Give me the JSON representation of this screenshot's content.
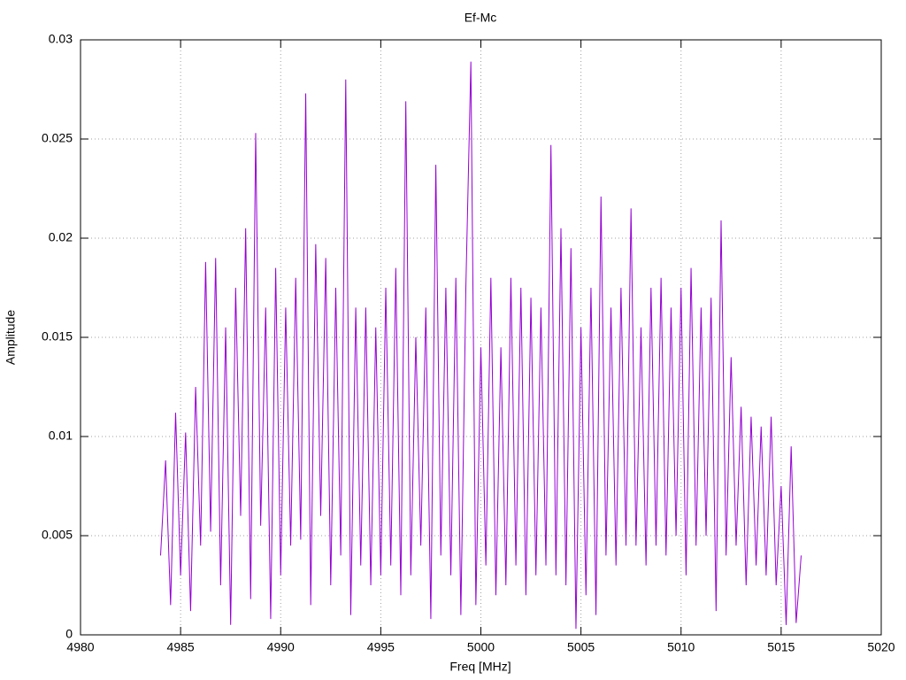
{
  "chart_data": {
    "type": "line",
    "title": "Ef-Mc",
    "xlabel": "Freq [MHz]",
    "ylabel": "Amplitude",
    "color": "#9400d3",
    "grid": true,
    "xlim": [
      4980,
      5020
    ],
    "xticks": [
      4980,
      4985,
      4990,
      4995,
      5000,
      5005,
      5010,
      5015,
      5020
    ],
    "ylim": [
      0,
      0.03
    ],
    "yticks": [
      0,
      0.005,
      0.01,
      0.015,
      0.02,
      0.025,
      0.03
    ],
    "x": [
      4984,
      4984.25,
      4984.5,
      4984.75,
      4985,
      4985.25,
      4985.5,
      4985.75,
      4986,
      4986.25,
      4986.5,
      4986.75,
      4987,
      4987.25,
      4987.5,
      4987.75,
      4988,
      4988.25,
      4988.5,
      4988.75,
      4989,
      4989.25,
      4989.5,
      4989.75,
      4990,
      4990.25,
      4990.5,
      4990.75,
      4991,
      4991.25,
      4991.5,
      4991.75,
      4992,
      4992.25,
      4992.5,
      4992.75,
      4993,
      4993.25,
      4993.5,
      4993.75,
      4994,
      4994.25,
      4994.5,
      4994.75,
      4995,
      4995.25,
      4995.5,
      4995.75,
      4996,
      4996.25,
      4996.5,
      4996.75,
      4997,
      4997.25,
      4997.5,
      4997.75,
      4998,
      4998.25,
      4998.5,
      4998.75,
      4999,
      4999.25,
      4999.5,
      4999.75,
      5000,
      5000.25,
      5000.5,
      5000.75,
      5001,
      5001.25,
      5001.5,
      5001.75,
      5002,
      5002.25,
      5002.5,
      5002.75,
      5003,
      5003.25,
      5003.5,
      5003.75,
      5004,
      5004.25,
      5004.5,
      5004.75,
      5005,
      5005.25,
      5005.5,
      5005.75,
      5006,
      5006.25,
      5006.5,
      5006.75,
      5007,
      5007.25,
      5007.5,
      5007.75,
      5008,
      5008.25,
      5008.5,
      5008.75,
      5009,
      5009.25,
      5009.5,
      5009.75,
      5010,
      5010.25,
      5010.5,
      5010.75,
      5011,
      5011.25,
      5011.5,
      5011.75,
      5012,
      5012.25,
      5012.5,
      5012.75,
      5013,
      5013.25,
      5013.5,
      5013.75,
      5014,
      5014.25,
      5014.5,
      5014.75,
      5015,
      5015.25,
      5015.5,
      5015.75,
      5016
    ],
    "values": [
      0.004,
      0.0088,
      0.0015,
      0.0112,
      0.003,
      0.0102,
      0.0012,
      0.0125,
      0.0045,
      0.0188,
      0.0052,
      0.019,
      0.0025,
      0.0155,
      0.0005,
      0.0175,
      0.006,
      0.0205,
      0.0018,
      0.0253,
      0.0055,
      0.0165,
      0.0008,
      0.0185,
      0.003,
      0.0165,
      0.0045,
      0.018,
      0.0048,
      0.0273,
      0.0015,
      0.0197,
      0.006,
      0.019,
      0.0025,
      0.0175,
      0.004,
      0.028,
      0.001,
      0.0165,
      0.0035,
      0.0165,
      0.0025,
      0.0155,
      0.003,
      0.0175,
      0.0035,
      0.0185,
      0.002,
      0.0269,
      0.003,
      0.015,
      0.0045,
      0.0165,
      0.0008,
      0.0237,
      0.004,
      0.0175,
      0.003,
      0.018,
      0.001,
      0.0175,
      0.0289,
      0.0015,
      0.0145,
      0.0035,
      0.018,
      0.002,
      0.0145,
      0.0025,
      0.018,
      0.0035,
      0.0175,
      0.002,
      0.017,
      0.003,
      0.0165,
      0.0035,
      0.0247,
      0.003,
      0.0205,
      0.0025,
      0.0195,
      0.0003,
      0.0155,
      0.002,
      0.0175,
      0.001,
      0.0221,
      0.004,
      0.0165,
      0.0035,
      0.0175,
      0.0045,
      0.0215,
      0.0045,
      0.0155,
      0.0035,
      0.0175,
      0.0045,
      0.018,
      0.004,
      0.0165,
      0.005,
      0.0175,
      0.003,
      0.0185,
      0.0045,
      0.0165,
      0.005,
      0.017,
      0.0012,
      0.0209,
      0.004,
      0.014,
      0.0045,
      0.0115,
      0.0025,
      0.011,
      0.0035,
      0.0105,
      0.003,
      0.011,
      0.0025,
      0.0075,
      0.0005,
      0.0095,
      0.0006,
      0.004
    ]
  }
}
